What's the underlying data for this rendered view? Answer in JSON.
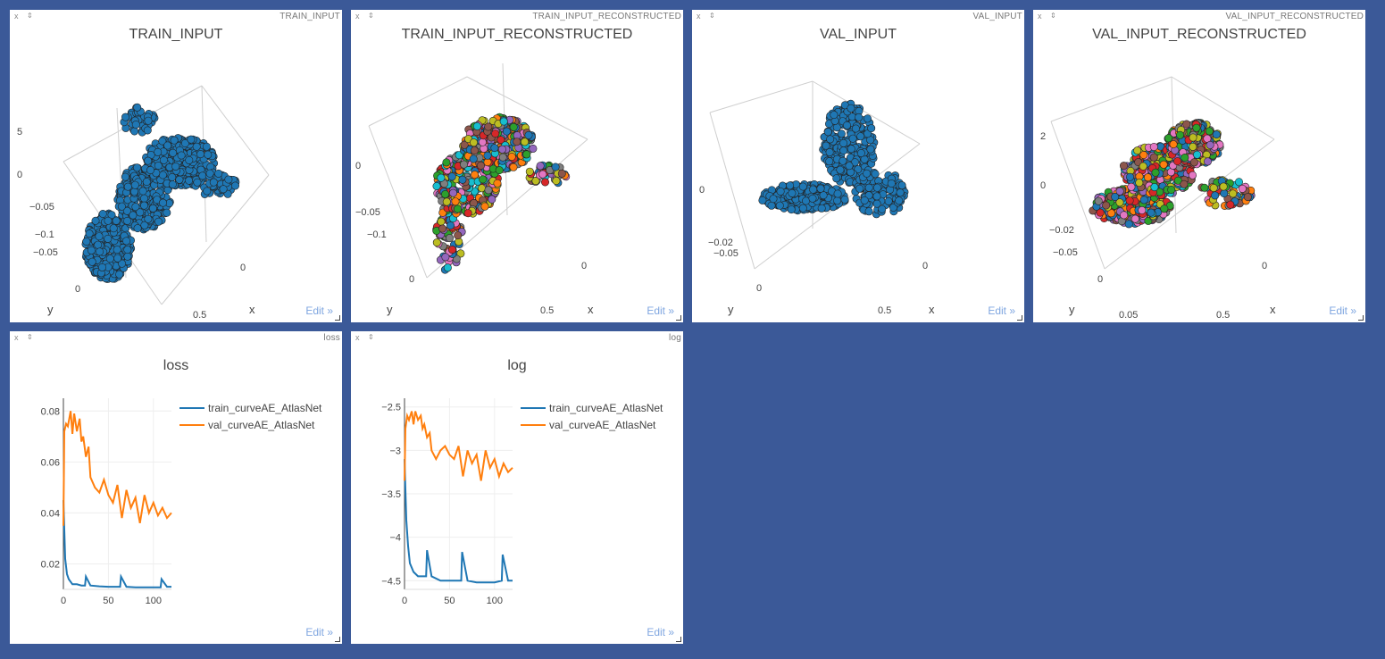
{
  "panes": {
    "train_input": {
      "title": "TRAIN_INPUT",
      "plot_title": "TRAIN_INPUT",
      "edit": "Edit »",
      "ticks": [
        "5",
        "0",
        "−0.05",
        "−0.1",
        "−0.05",
        "0",
        "0",
        "0.5"
      ],
      "axis_labels": [
        "y",
        "x"
      ]
    },
    "train_recon": {
      "title": "TRAIN_INPUT_RECONSTRUCTED",
      "plot_title": "TRAIN_INPUT_RECONSTRUCTED",
      "edit": "Edit »",
      "ticks": [
        "0",
        "−0.05",
        "−0.1",
        "0",
        "0",
        "0.5"
      ],
      "axis_labels": [
        "y",
        "x"
      ]
    },
    "val_input": {
      "title": "VAL_INPUT",
      "plot_title": "VAL_INPUT",
      "edit": "Edit »",
      "ticks": [
        "0",
        "−0.02",
        "−0.05",
        "0",
        "0",
        "0.5"
      ],
      "axis_labels": [
        "y",
        "x"
      ]
    },
    "val_recon": {
      "title": "VAL_INPUT_RECONSTRUCTED",
      "plot_title": "VAL_INPUT_RECONSTRUCTED",
      "edit": "Edit »",
      "ticks": [
        "2",
        "0",
        "−0.02",
        "−0.05",
        "0",
        "0",
        "0.05",
        "0.5"
      ],
      "axis_labels": [
        "y",
        "x"
      ]
    },
    "loss": {
      "title": "loss",
      "plot_title": "loss",
      "edit": "Edit »"
    },
    "log": {
      "title": "log",
      "plot_title": "log",
      "edit": "Edit »"
    }
  },
  "pane_controls": {
    "close": "x",
    "pin": "⇕"
  },
  "colors": {
    "background": "#3b5998",
    "train": "#1f77b4",
    "val": "#ff7f0e",
    "recon_palette": [
      "#1f77b4",
      "#ff7f0e",
      "#2ca02c",
      "#d62728",
      "#9467bd",
      "#8c564b",
      "#e377c2",
      "#7f7f7f",
      "#bcbd22",
      "#17becf"
    ]
  },
  "chart_data": [
    {
      "type": "line",
      "title": "loss",
      "xlim": [
        0,
        120
      ],
      "ylim": [
        0.01,
        0.085
      ],
      "xticks": [
        0,
        50,
        100
      ],
      "yticks": [
        0.02,
        0.04,
        0.06,
        0.08
      ],
      "ytick_labels": [
        "0.02",
        "0.04",
        "0.06",
        "0.08"
      ],
      "grid": true,
      "legend": "top-right",
      "series": [
        {
          "name": "train_curveAE_AtlasNet",
          "x": [
            0,
            2,
            4,
            6,
            10,
            15,
            20,
            24,
            25,
            30,
            40,
            50,
            60,
            63,
            64,
            70,
            80,
            90,
            100,
            108,
            109,
            115,
            120
          ],
          "y": [
            0.045,
            0.022,
            0.016,
            0.014,
            0.012,
            0.012,
            0.0115,
            0.0115,
            0.015,
            0.0115,
            0.0112,
            0.011,
            0.011,
            0.011,
            0.015,
            0.011,
            0.0108,
            0.0108,
            0.0108,
            0.0108,
            0.014,
            0.011,
            0.011
          ]
        },
        {
          "name": "val_curveAE_AtlasNet",
          "x": [
            0,
            1,
            3,
            5,
            8,
            10,
            12,
            15,
            18,
            20,
            22,
            25,
            28,
            30,
            35,
            40,
            45,
            50,
            55,
            60,
            65,
            70,
            75,
            80,
            85,
            90,
            95,
            100,
            105,
            110,
            115,
            120
          ],
          "y": [
            0.035,
            0.072,
            0.075,
            0.074,
            0.08,
            0.071,
            0.079,
            0.072,
            0.077,
            0.068,
            0.07,
            0.062,
            0.066,
            0.054,
            0.05,
            0.048,
            0.053,
            0.047,
            0.044,
            0.051,
            0.038,
            0.049,
            0.042,
            0.046,
            0.036,
            0.047,
            0.04,
            0.044,
            0.039,
            0.042,
            0.038,
            0.04
          ]
        }
      ]
    },
    {
      "type": "line",
      "title": "log",
      "xlim": [
        0,
        120
      ],
      "ylim": [
        -4.6,
        -2.4
      ],
      "xticks": [
        0,
        50,
        100
      ],
      "yticks": [
        -2.5,
        -3,
        -3.5,
        -4,
        -4.5
      ],
      "ytick_labels": [
        "−2.5",
        "−3",
        "−3.5",
        "−4",
        "−4.5"
      ],
      "grid": true,
      "legend": "top-right",
      "series": [
        {
          "name": "train_curveAE_AtlasNet",
          "x": [
            0,
            2,
            4,
            6,
            10,
            15,
            20,
            24,
            25,
            30,
            40,
            50,
            60,
            63,
            64,
            70,
            80,
            90,
            100,
            108,
            109,
            115,
            120
          ],
          "y": [
            -3.1,
            -3.8,
            -4.1,
            -4.3,
            -4.4,
            -4.45,
            -4.45,
            -4.45,
            -4.15,
            -4.45,
            -4.5,
            -4.5,
            -4.5,
            -4.5,
            -4.17,
            -4.5,
            -4.52,
            -4.52,
            -4.52,
            -4.5,
            -4.2,
            -4.5,
            -4.5
          ]
        },
        {
          "name": "val_curveAE_AtlasNet",
          "x": [
            0,
            1,
            3,
            5,
            8,
            10,
            12,
            15,
            18,
            20,
            22,
            25,
            28,
            30,
            35,
            40,
            45,
            50,
            55,
            60,
            65,
            70,
            75,
            80,
            85,
            90,
            95,
            100,
            105,
            110,
            115,
            120
          ],
          "y": [
            -3.35,
            -2.75,
            -2.6,
            -2.65,
            -2.55,
            -2.7,
            -2.55,
            -2.65,
            -2.6,
            -2.75,
            -2.7,
            -2.85,
            -2.8,
            -3.0,
            -3.1,
            -3.0,
            -2.95,
            -3.05,
            -3.1,
            -2.95,
            -3.3,
            -3.0,
            -3.15,
            -3.05,
            -3.35,
            -3.0,
            -3.2,
            -3.1,
            -3.3,
            -3.15,
            -3.25,
            -3.2
          ]
        }
      ]
    }
  ]
}
